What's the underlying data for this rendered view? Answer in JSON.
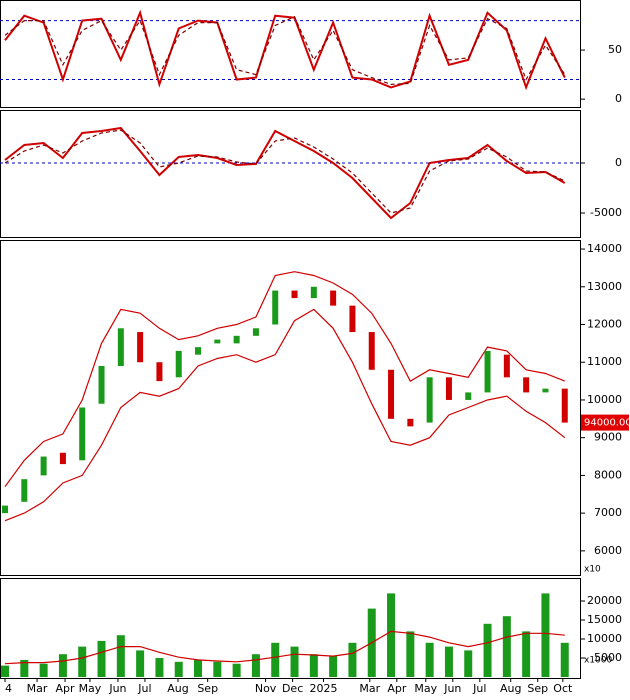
{
  "chart_data": [
    {
      "type": "line",
      "xlim": [
        -0.26,
        29.79
      ],
      "ylim": [
        -8,
        101
      ],
      "yticks": [
        0,
        50
      ],
      "hlines": [
        80,
        20
      ],
      "series": [
        {
          "color": "#d00000",
          "values": [
            60,
            85,
            78,
            20,
            80,
            82,
            40,
            88,
            15,
            72,
            80,
            78,
            20,
            22,
            85,
            83,
            30,
            78,
            22,
            20,
            12,
            18,
            85,
            35,
            40,
            88,
            70,
            12,
            62,
            22
          ]
        },
        {
          "color": "#800000",
          "style": "dashed",
          "values": [
            65,
            80,
            80,
            35,
            70,
            80,
            50,
            80,
            25,
            65,
            78,
            78,
            30,
            25,
            75,
            84,
            40,
            70,
            30,
            22,
            15,
            16,
            75,
            40,
            42,
            82,
            72,
            20,
            55,
            25
          ]
        }
      ]
    },
    {
      "type": "line",
      "xlim": [
        -0.26,
        29.79
      ],
      "ylim": [
        -7400,
        5300
      ],
      "yticks": [
        0,
        -5000
      ],
      "hlines": [
        0
      ],
      "series": [
        {
          "color": "#d00000",
          "values": [
            300,
            1800,
            2000,
            500,
            3000,
            3200,
            3500,
            1200,
            -1200,
            600,
            800,
            500,
            -200,
            -100,
            3200,
            2200,
            1200,
            0,
            -1500,
            -3500,
            -5500,
            -4000,
            0,
            300,
            500,
            1800,
            200,
            -1000,
            -900,
            -2000
          ]
        },
        {
          "color": "#800000",
          "style": "dashed",
          "values": [
            0,
            1200,
            1800,
            1000,
            2200,
            3000,
            3300,
            2000,
            -400,
            0,
            700,
            600,
            100,
            -100,
            2200,
            2500,
            1600,
            400,
            -1000,
            -3000,
            -5000,
            -4500,
            -800,
            200,
            400,
            1500,
            600,
            -800,
            -900,
            -1800
          ]
        }
      ]
    },
    {
      "type": "candlestick",
      "xlim": [
        -0.26,
        29.79
      ],
      "ylim": [
        5360,
        14240
      ],
      "yticks": [
        6000,
        7000,
        8000,
        9000,
        10000,
        11000,
        12000,
        13000,
        14000
      ],
      "price_tag": "94000.00",
      "unit_label": "x10",
      "up_color": "#1a9a1a",
      "down_color": "#d00000",
      "open": [
        7000,
        7300,
        8000,
        8600,
        8400,
        9900,
        10900,
        11800,
        11000,
        10600,
        11200,
        11500,
        11500,
        11700,
        12000,
        12900,
        12700,
        12900,
        12500,
        11800,
        10800,
        9500,
        9400,
        10600,
        10000,
        10200,
        11200,
        10600,
        10200,
        10300
      ],
      "close": [
        7200,
        7900,
        8500,
        8300,
        9800,
        10900,
        11900,
        11000,
        10500,
        11300,
        11400,
        11600,
        11700,
        11900,
        12900,
        12700,
        13000,
        12500,
        11800,
        10800,
        9500,
        9300,
        10600,
        10000,
        10200,
        11300,
        10600,
        10200,
        10300,
        9400
      ],
      "series": [
        {
          "color": "#d00000",
          "values": [
            7700,
            8400,
            8900,
            9100,
            10000,
            11500,
            12400,
            12300,
            11900,
            11600,
            11700,
            11900,
            12000,
            12200,
            13300,
            13400,
            13300,
            13100,
            12800,
            12300,
            11500,
            10500,
            10800,
            10700,
            10600,
            11400,
            11300,
            10800,
            10700,
            10500
          ]
        },
        {
          "color": "#d00000",
          "values": [
            6800,
            7000,
            7300,
            7800,
            8000,
            8800,
            9800,
            10200,
            10100,
            10300,
            10900,
            11100,
            11200,
            11000,
            11200,
            12100,
            12400,
            11900,
            11000,
            9900,
            8900,
            8800,
            9000,
            9600,
            9800,
            10000,
            10100,
            9700,
            9400,
            9000
          ]
        }
      ]
    },
    {
      "type": "bar",
      "xlim": [
        -0.26,
        29.79
      ],
      "ylim": [
        -260,
        26050
      ],
      "yticks": [
        5000,
        10000,
        15000,
        20000
      ],
      "unit_label": "x1000",
      "color": "#1a9a1a",
      "values": [
        3000,
        4500,
        3500,
        6000,
        8000,
        9500,
        11000,
        7000,
        5000,
        4000,
        4500,
        4000,
        3500,
        6000,
        9000,
        8000,
        6000,
        5500,
        9000,
        18000,
        22000,
        12000,
        9000,
        8000,
        7000,
        14000,
        16000,
        12000,
        22000,
        9000
      ],
      "series": [
        {
          "color": "#d00000",
          "values": [
            3500,
            3800,
            3800,
            4200,
            5000,
            6500,
            8000,
            8000,
            6500,
            5200,
            4500,
            4200,
            4000,
            4500,
            5200,
            6000,
            5800,
            5500,
            6200,
            9000,
            12000,
            11500,
            10500,
            9000,
            8000,
            9000,
            10500,
            11500,
            11500,
            11000
          ]
        }
      ],
      "xticks": [
        {
          "value": 0,
          "label": "4"
        },
        {
          "value": 1.66,
          "label": "Mar"
        },
        {
          "value": 3.11,
          "label": "Apr"
        },
        {
          "value": 4.4,
          "label": "May"
        },
        {
          "value": 5.85,
          "label": "Jun"
        },
        {
          "value": 7.25,
          "label": "Jul"
        },
        {
          "value": 8.96,
          "label": "Aug"
        },
        {
          "value": 10.5,
          "label": "Sep"
        },
        {
          "value": 13.5,
          "label": "Nov"
        },
        {
          "value": 14.9,
          "label": "Dec"
        },
        {
          "value": 16.5,
          "label": "2025"
        },
        {
          "value": 18.9,
          "label": "Mar"
        },
        {
          "value": 20.3,
          "label": "Apr"
        },
        {
          "value": 21.8,
          "label": "May"
        },
        {
          "value": 23.2,
          "label": "Jun"
        },
        {
          "value": 24.6,
          "label": "Jul"
        },
        {
          "value": 26.2,
          "label": "Aug"
        },
        {
          "value": 27.6,
          "label": "Sep"
        },
        {
          "value": 28.9,
          "label": "Oct"
        }
      ]
    }
  ]
}
